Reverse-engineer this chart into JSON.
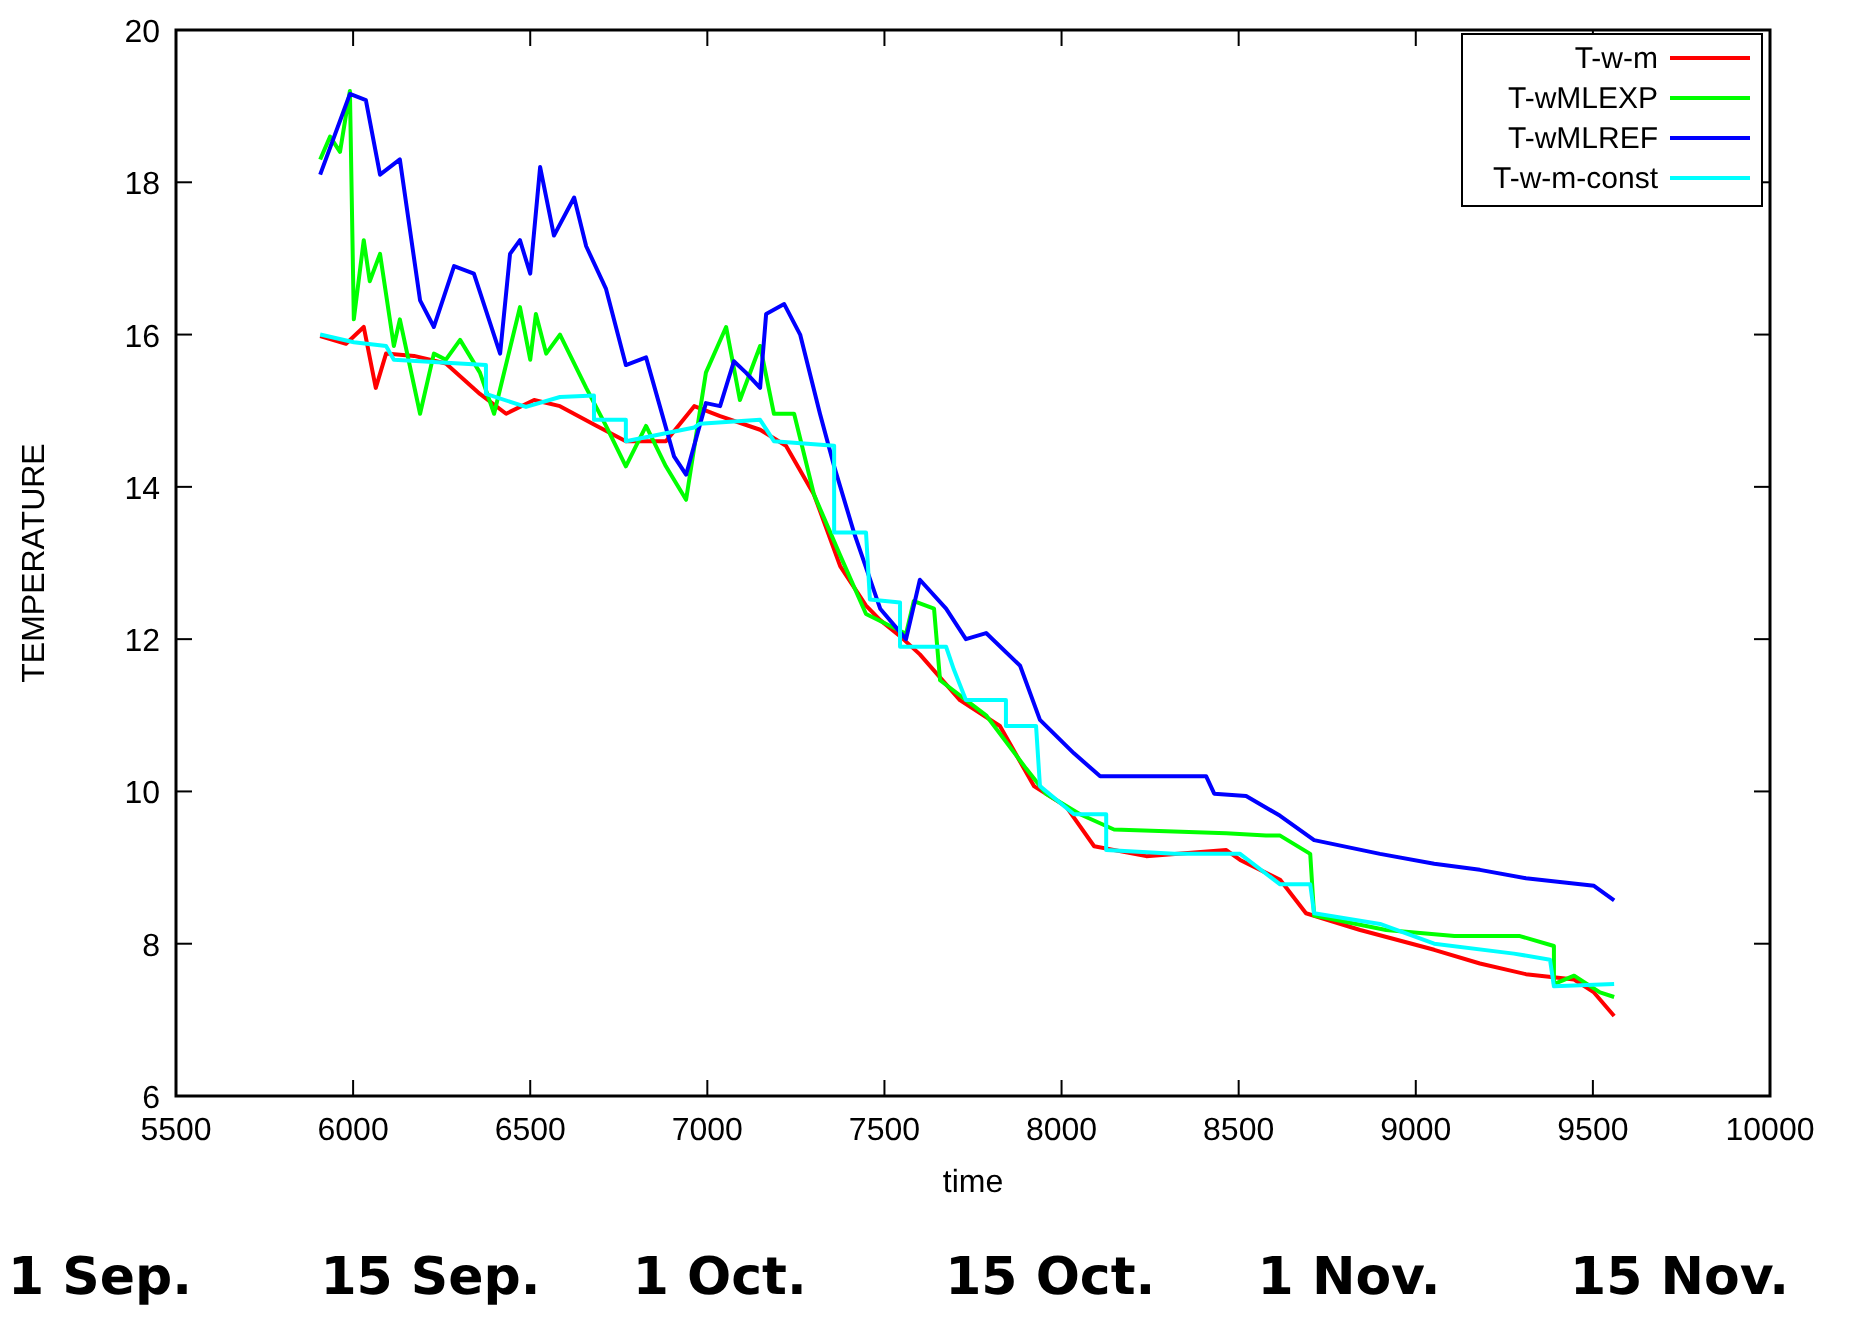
{
  "chart_data": {
    "type": "line",
    "xlabel": "time",
    "ylabel": "TEMPERATURE",
    "xlim": [
      5500,
      10000
    ],
    "xticks": [
      5500,
      6000,
      6500,
      7000,
      7500,
      8000,
      8500,
      9000,
      9500,
      10000
    ],
    "ylim": [
      6,
      20
    ],
    "yticks": [
      6,
      8,
      10,
      12,
      14,
      16,
      18,
      20
    ],
    "grid": false,
    "legend": "top right",
    "marker": "none",
    "line_style": "solid",
    "annotations": [
      "1 Sep.",
      "15 Sep.",
      "1 Oct.",
      "15 Oct.",
      "1 Nov.",
      "15 Nov."
    ],
    "series": [
      {
        "name": "T-w-m",
        "color": "#ff0000",
        "x": [
          5907,
          5980,
          6030,
          6064,
          6093,
          6172,
          6262,
          6358,
          6432,
          6511,
          6584,
          6680,
          6770,
          6883,
          6963,
          7036,
          7149,
          7222,
          7301,
          7375,
          7448,
          7488,
          7544,
          7600,
          7713,
          7826,
          7922,
          8013,
          8092,
          8239,
          8465,
          8504,
          8617,
          8690,
          8843,
          9052,
          9181,
          9311,
          9447,
          9503,
          9560
        ],
        "values": [
          15.98,
          15.88,
          16.1,
          15.3,
          15.75,
          15.72,
          15.62,
          15.22,
          14.96,
          15.14,
          15.06,
          14.82,
          14.6,
          14.6,
          15.06,
          14.93,
          14.75,
          14.54,
          13.9,
          12.96,
          12.44,
          12.25,
          12.04,
          11.8,
          11.2,
          10.86,
          10.07,
          9.8,
          9.28,
          9.15,
          9.23,
          9.1,
          8.84,
          8.4,
          8.18,
          7.92,
          7.74,
          7.6,
          7.53,
          7.36,
          7.05
        ]
      },
      {
        "name": "T-wMLEXP",
        "color": "#00ff00",
        "x": [
          5907,
          5935,
          5963,
          5991,
          6002,
          6030,
          6047,
          6076,
          6115,
          6132,
          6189,
          6228,
          6262,
          6302,
          6358,
          6398,
          6471,
          6500,
          6516,
          6545,
          6584,
          6658,
          6714,
          6770,
          6827,
          6883,
          6940,
          6996,
          7053,
          7092,
          7149,
          7188,
          7245,
          7301,
          7375,
          7448,
          7561,
          7583,
          7640,
          7657,
          7787,
          7900,
          7956,
          8052,
          8148,
          8465,
          8577,
          8617,
          8702,
          8713,
          8916,
          9109,
          9294,
          9390,
          9390,
          9447,
          9520,
          9560
        ],
        "values": [
          18.3,
          18.6,
          18.4,
          19.2,
          16.2,
          17.24,
          16.7,
          17.06,
          15.85,
          16.2,
          14.96,
          15.75,
          15.67,
          15.93,
          15.5,
          14.96,
          16.36,
          15.67,
          16.27,
          15.75,
          16.0,
          15.3,
          14.8,
          14.27,
          14.8,
          14.27,
          13.83,
          15.5,
          16.1,
          15.14,
          15.85,
          14.96,
          14.96,
          13.9,
          13.1,
          12.33,
          12.07,
          12.5,
          12.4,
          11.46,
          11.0,
          10.3,
          9.97,
          9.7,
          9.5,
          9.45,
          9.42,
          9.42,
          9.18,
          8.37,
          8.18,
          8.1,
          8.1,
          7.97,
          7.47,
          7.58,
          7.36,
          7.3
        ]
      },
      {
        "name": "T-wMLREF",
        "color": "#0000ff",
        "x": [
          5907,
          5991,
          6036,
          6076,
          6132,
          6189,
          6228,
          6285,
          6341,
          6415,
          6443,
          6471,
          6500,
          6528,
          6567,
          6624,
          6658,
          6714,
          6770,
          6827,
          6906,
          6940,
          6996,
          7036,
          7075,
          7109,
          7149,
          7166,
          7217,
          7262,
          7318,
          7358,
          7414,
          7488,
          7561,
          7600,
          7674,
          7730,
          7787,
          7883,
          7939,
          8035,
          8109,
          8408,
          8431,
          8521,
          8617,
          8713,
          8899,
          9052,
          9181,
          9311,
          9503,
          9560
        ],
        "values": [
          18.1,
          19.16,
          19.08,
          18.1,
          18.3,
          16.45,
          16.1,
          16.9,
          16.8,
          15.75,
          17.06,
          17.24,
          16.8,
          18.2,
          17.3,
          17.8,
          17.16,
          16.6,
          15.6,
          15.7,
          14.4,
          14.16,
          15.1,
          15.06,
          15.65,
          15.5,
          15.3,
          16.27,
          16.4,
          16.0,
          14.96,
          14.27,
          13.4,
          12.4,
          12.0,
          12.78,
          12.4,
          12.0,
          12.08,
          11.65,
          10.94,
          10.5,
          10.2,
          10.2,
          9.97,
          9.94,
          9.68,
          9.36,
          9.18,
          9.05,
          8.97,
          8.86,
          8.76,
          8.57
        ]
      },
      {
        "name": "T-w-m-const",
        "color": "#00ffff",
        "x": [
          5907,
          6002,
          6093,
          6115,
          6375,
          6375,
          6488,
          6584,
          6680,
          6680,
          6770,
          6770,
          6963,
          6979,
          7149,
          7188,
          7358,
          7358,
          7448,
          7459,
          7544,
          7544,
          7674,
          7696,
          7730,
          7843,
          7843,
          7928,
          7939,
          8035,
          8126,
          8126,
          8318,
          8504,
          8617,
          8702,
          8713,
          8899,
          9052,
          9277,
          9379,
          9390,
          9560
        ],
        "values": [
          16.0,
          15.9,
          15.85,
          15.67,
          15.6,
          15.22,
          15.05,
          15.18,
          15.2,
          14.88,
          14.88,
          14.6,
          14.78,
          14.83,
          14.88,
          14.6,
          14.54,
          13.4,
          13.4,
          12.52,
          12.48,
          11.9,
          11.9,
          11.6,
          11.2,
          11.2,
          10.86,
          10.86,
          10.07,
          9.7,
          9.7,
          9.23,
          9.18,
          9.18,
          8.78,
          8.78,
          8.4,
          8.26,
          8.0,
          7.87,
          7.79,
          7.44,
          7.47
        ]
      }
    ]
  }
}
